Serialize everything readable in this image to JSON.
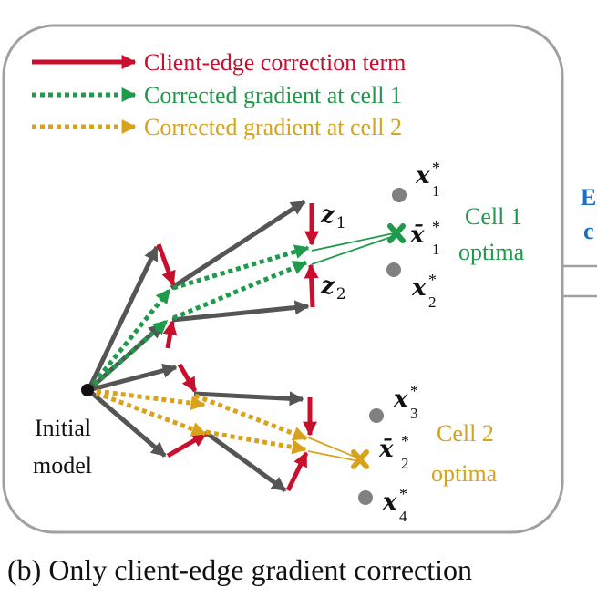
{
  "legend": {
    "red": "Client-edge correction term",
    "green": "Corrected gradient at cell 1",
    "orange": "Corrected gradient at cell 2"
  },
  "labels": {
    "initial_line1": "Initial",
    "initial_line2": "model",
    "z1_base": "z",
    "z1_sub": "1",
    "z2_base": "z",
    "z2_sub": "2",
    "x1": {
      "base": "x",
      "sup": "*",
      "sub": "1"
    },
    "x2": {
      "base": "x",
      "sup": "*",
      "sub": "2"
    },
    "x3": {
      "base": "x",
      "sup": "*",
      "sub": "3"
    },
    "x4": {
      "base": "x",
      "sup": "*",
      "sub": "4"
    },
    "xbar1": {
      "base": "x̄",
      "sup": "*",
      "sub": "1"
    },
    "xbar2": {
      "base": "x̄",
      "sup": "*",
      "sub": "2"
    },
    "cell1_line1": "Cell 1",
    "cell1_line2": "optima",
    "cell2_line1": "Cell 2",
    "cell2_line2": "optima",
    "side_top": "E",
    "side_bottom": "c"
  },
  "caption": "(b) Only client-edge gradient correction",
  "colors": {
    "red": "#c8102e",
    "green": "#1f9a4c",
    "orange": "#d9a21b",
    "gray": "#555555",
    "blue": "#1f6fc0",
    "dot": "#808080",
    "frame": "#a0a0a0"
  }
}
